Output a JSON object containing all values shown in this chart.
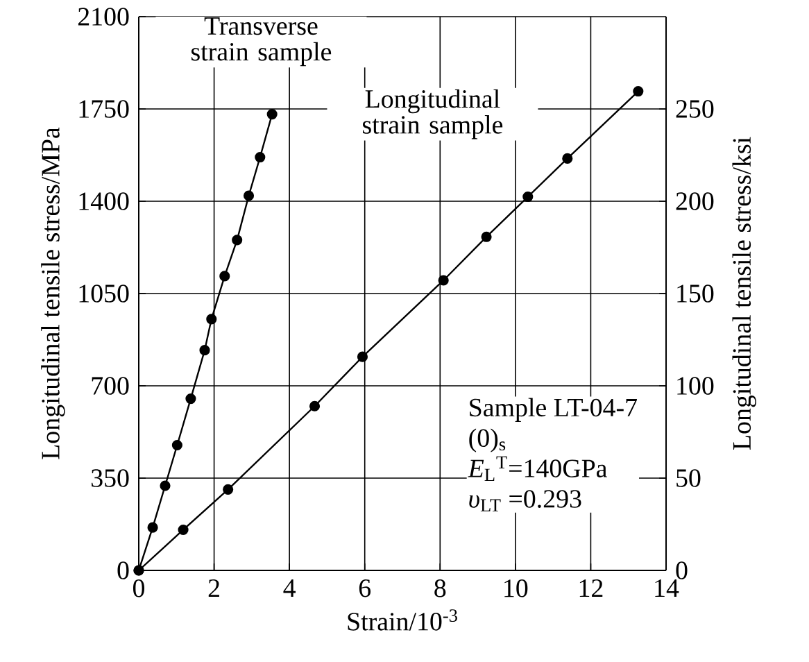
{
  "chart_data": {
    "type": "line",
    "xlabel": "Strain/10$^{-3}$",
    "ylabel": "Longitudinal tensile stress/MPa",
    "y2label": "Longitudinal tensile stress/ksi",
    "series": [
      {
        "name": "Transverse strain sample",
        "color": "#000000",
        "x": [
          0,
          0.37,
          0.7,
          1.02,
          1.38,
          1.75,
          1.93,
          2.28,
          2.61,
          2.92,
          3.22,
          3.54
        ],
        "values": [
          0,
          163,
          321,
          475,
          651,
          835,
          953,
          1116,
          1253,
          1421,
          1567,
          1730
        ]
      },
      {
        "name": "Longitudinal strain sample",
        "color": "#000000",
        "x": [
          0,
          1.18,
          2.37,
          4.67,
          5.94,
          8.09,
          9.23,
          10.33,
          11.38,
          13.26
        ],
        "values": [
          0,
          154,
          307,
          623,
          810,
          1100,
          1265,
          1417,
          1562,
          1817
        ]
      }
    ],
    "annotations": [
      "Sample LT-04-7",
      "(0)$_{s}$",
      "*E*$_{L}$$^{T}$=140GPa",
      "*υ*$_{LT}$ =0.293"
    ],
    "xlim": [
      0,
      14
    ],
    "ylim": [
      0,
      2100
    ],
    "y2lim": [
      0,
      300
    ],
    "xticks": [
      0,
      2,
      4,
      6,
      8,
      10,
      12,
      14
    ],
    "yticks": [
      0,
      350,
      700,
      1050,
      1400,
      1750,
      2100
    ],
    "y2ticks": [
      0,
      50,
      100,
      150,
      200,
      250
    ],
    "grid": true,
    "marker": "circle",
    "line_style": "solid"
  }
}
